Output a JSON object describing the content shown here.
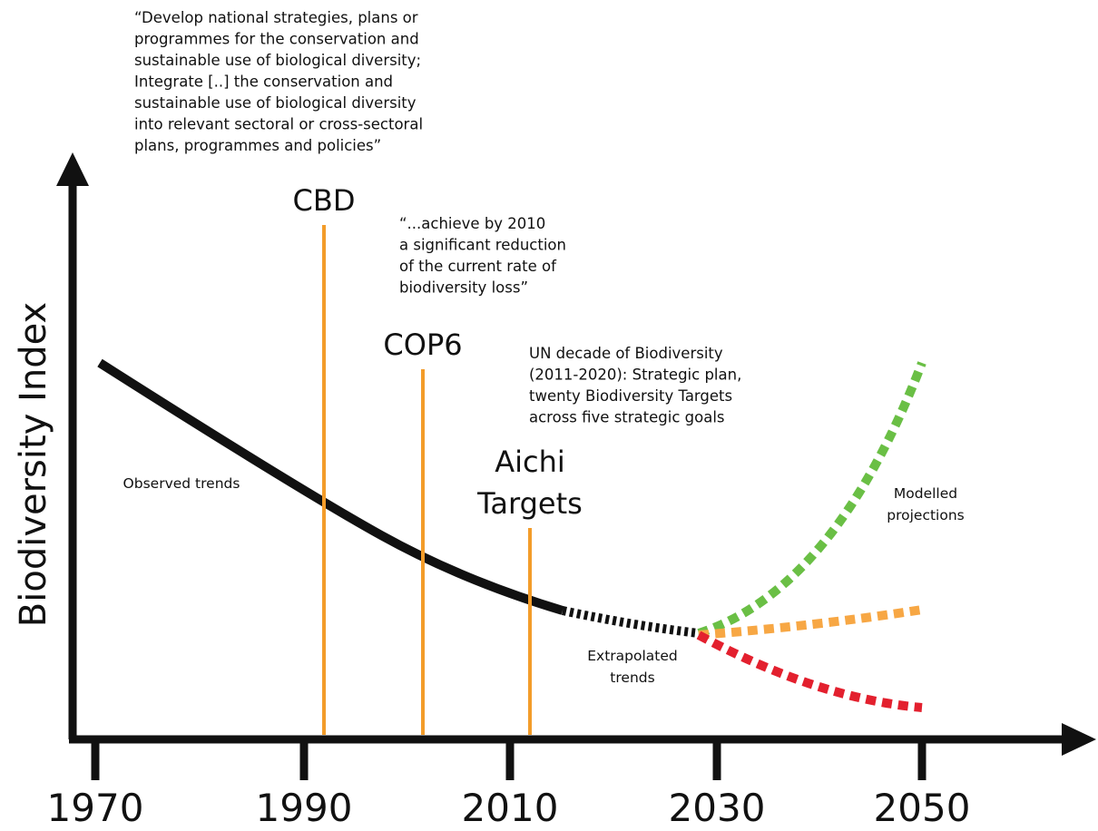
{
  "axis": {
    "y_label": "Biodiversity Index",
    "x_ticks": [
      1970,
      1990,
      2010,
      2030,
      2050
    ]
  },
  "events": [
    {
      "label": [
        "CBD"
      ]
    },
    {
      "label": [
        "COP6"
      ]
    },
    {
      "label": [
        "Aichi",
        "Targets"
      ]
    }
  ],
  "quotes": [
    [
      "“Develop national strategies, plans or",
      "programmes for the conservation and",
      "sustainable use of biological diversity;",
      "Integrate [..] the conservation and",
      "sustainable use of biological diversity",
      "into relevant sectoral or cross-sectoral",
      "plans, programmes and policies”"
    ],
    [
      "“...achieve by 2010",
      "a significant reduction",
      "of the current rate of",
      "biodiversity loss”"
    ],
    [
      "UN decade of Biodiversity",
      "(2011-2020): Strategic plan,",
      "twenty Biodiversity Targets",
      "across five strategic goals"
    ]
  ],
  "curve_labels": [
    [
      "Observed trends"
    ],
    [
      "Extrapolated",
      "trends"
    ],
    [
      "Modelled",
      "projections"
    ]
  ]
}
